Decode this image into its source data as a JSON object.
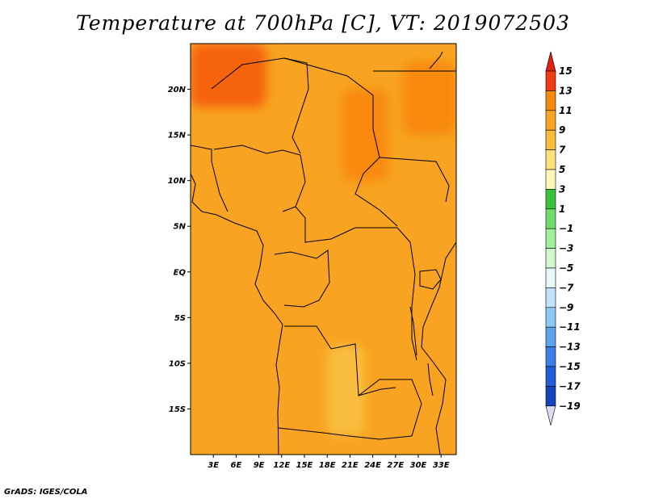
{
  "title": "Temperature at 700hPa [C], VT: 2019072503",
  "footer": "GrADS: IGES/COLA",
  "chart_data": {
    "type": "heatmap",
    "title": "Temperature at 700hPa [C], VT: 2019072503",
    "variable": "Temperature",
    "level": "700hPa",
    "units": "C",
    "valid_time": "2019072503",
    "x_axis": {
      "range": [
        0,
        35
      ],
      "ticks": [
        3,
        6,
        9,
        12,
        15,
        18,
        21,
        24,
        27,
        30,
        33
      ],
      "tick_labels": [
        "3E",
        "6E",
        "9E",
        "12E",
        "15E",
        "18E",
        "21E",
        "24E",
        "27E",
        "30E",
        "33E"
      ]
    },
    "y_axis": {
      "range": [
        -20,
        25
      ],
      "ticks": [
        20,
        15,
        10,
        5,
        0,
        -5,
        -10,
        -15
      ],
      "tick_labels": [
        "20N",
        "15N",
        "10N",
        "5N",
        "EQ",
        "5S",
        "10S",
        "15S"
      ]
    },
    "colorbar": {
      "levels": [
        15,
        13,
        11,
        9,
        7,
        5,
        3,
        1,
        -1,
        -3,
        -5,
        -7,
        -9,
        -11,
        -13,
        -15,
        -17,
        -19
      ],
      "labels": [
        "15",
        "13",
        "11",
        "9",
        "7",
        "5",
        "3",
        "1",
        "−1",
        "−3",
        "−5",
        "−7",
        "−9",
        "−11",
        "−13",
        "−15",
        "−17",
        "−19"
      ],
      "colors": [
        "#f03c14",
        "#f5640f",
        "#f8890f",
        "#f8a321",
        "#f9bd3c",
        "#fde17c",
        "#fdf8b8",
        "#3bc23d",
        "#6fdc6a",
        "#a0ef9b",
        "#d0f8cc",
        "#e8f8f8",
        "#bfe3fa",
        "#8ec9f5",
        "#5ba5ee",
        "#3a7ee6",
        "#225fd6",
        "#1445b8",
        "#0a2a8a"
      ],
      "top_triangle_color": "#e02010",
      "bottom_triangle_color": "#dcdcf5"
    },
    "grid": false,
    "legend": "right",
    "field_regions": [
      {
        "lon": [
          0,
          35
        ],
        "lat": [
          -20,
          25
        ],
        "value": 10
      },
      {
        "lon": [
          0,
          10
        ],
        "lat": [
          18,
          25
        ],
        "value": 13
      },
      {
        "lon": [
          28,
          35
        ],
        "lat": [
          15,
          23
        ],
        "value": 12
      },
      {
        "lon": [
          20,
          26
        ],
        "lat": [
          10,
          20
        ],
        "value": 11.5
      },
      {
        "lon": [
          18,
          23
        ],
        "lat": [
          -18,
          -8
        ],
        "value": 7
      },
      {
        "lon": [
          8,
          18
        ],
        "lat": [
          5,
          14
        ],
        "value": 9
      }
    ]
  }
}
